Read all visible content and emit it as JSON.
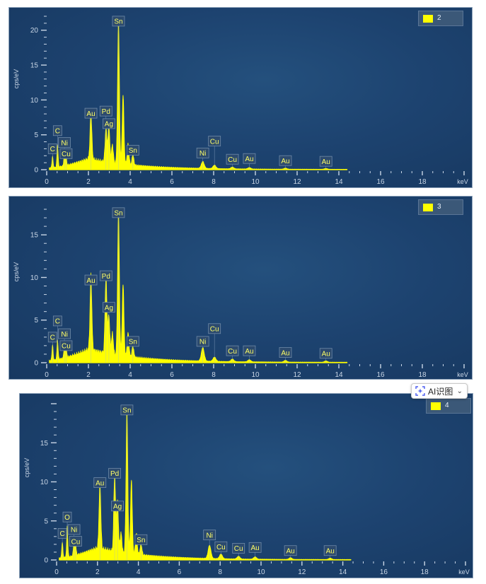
{
  "colors": {
    "spectrum": "#ffff00",
    "axis": "#c9d6e6",
    "label_bg": "#2c4a6e",
    "label_text": "#ffff66",
    "panel_bg": "#1b3d64"
  },
  "ai_button": {
    "label": "AI识图",
    "icon": "ai-scan-icon",
    "chevron": "chevron-down-icon"
  },
  "chart_data": [
    {
      "type": "area",
      "legend": "2",
      "ylabel": "cps/eV",
      "xlabel": "keV",
      "xlim": [
        0,
        20
      ],
      "ylim": [
        0,
        22
      ],
      "xticks": [
        0,
        2,
        4,
        6,
        8,
        10,
        12,
        14,
        16,
        18
      ],
      "yticks": [
        0,
        5,
        10,
        15,
        20
      ],
      "peaks": [
        {
          "x": 0.28,
          "y": 1.6
        },
        {
          "x": 0.52,
          "y": 3.2
        },
        {
          "x": 0.85,
          "y": 1.9
        },
        {
          "x": 0.93,
          "y": 1.2
        },
        {
          "x": 2.12,
          "y": 6.8
        },
        {
          "x": 2.84,
          "y": 4.8
        },
        {
          "x": 2.98,
          "y": 5.2
        },
        {
          "x": 3.15,
          "y": 2.6
        },
        {
          "x": 3.44,
          "y": 20.5
        },
        {
          "x": 3.66,
          "y": 10.0
        },
        {
          "x": 3.9,
          "y": 3.0
        },
        {
          "x": 4.13,
          "y": 1.5
        },
        {
          "x": 7.48,
          "y": 1.0
        },
        {
          "x": 8.04,
          "y": 0.5
        },
        {
          "x": 8.9,
          "y": 0.25
        },
        {
          "x": 9.71,
          "y": 0.2
        },
        {
          "x": 11.44,
          "y": 0.15
        },
        {
          "x": 13.38,
          "y": 0.12
        }
      ],
      "annotations": [
        {
          "text": "Sn",
          "x": 3.44,
          "y": 21.3
        },
        {
          "text": "Au",
          "x": 2.12,
          "y": 8.1
        },
        {
          "text": "Pd",
          "x": 2.84,
          "y": 8.4
        },
        {
          "text": "Ag",
          "x": 2.98,
          "y": 6.6
        },
        {
          "text": "C",
          "x": 0.52,
          "y": 5.6
        },
        {
          "text": "Ni",
          "x": 0.85,
          "y": 3.9
        },
        {
          "text": "C",
          "x": 0.28,
          "y": 3.0
        },
        {
          "text": "Cu",
          "x": 0.93,
          "y": 2.3
        },
        {
          "text": "Sn",
          "x": 4.13,
          "y": 2.8
        },
        {
          "text": "Cu",
          "x": 8.04,
          "y": 4.1
        },
        {
          "text": "Ni",
          "x": 7.48,
          "y": 2.4
        },
        {
          "text": "Cu",
          "x": 8.9,
          "y": 1.5
        },
        {
          "text": "Au",
          "x": 9.71,
          "y": 1.6
        },
        {
          "text": "Au",
          "x": 11.44,
          "y": 1.3
        },
        {
          "text": "Au",
          "x": 13.38,
          "y": 1.2
        }
      ]
    },
    {
      "type": "area",
      "legend": "3",
      "ylabel": "cps/eV",
      "xlabel": "keV",
      "xlim": [
        0,
        20
      ],
      "ylim": [
        0,
        18
      ],
      "xticks": [
        0,
        2,
        4,
        6,
        8,
        10,
        12,
        14,
        16,
        18
      ],
      "yticks": [
        0,
        5,
        10,
        15
      ],
      "peaks": [
        {
          "x": 0.28,
          "y": 1.8
        },
        {
          "x": 0.52,
          "y": 2.3
        },
        {
          "x": 0.85,
          "y": 1.6
        },
        {
          "x": 0.93,
          "y": 1.3
        },
        {
          "x": 2.12,
          "y": 8.8
        },
        {
          "x": 2.84,
          "y": 9.0
        },
        {
          "x": 2.98,
          "y": 4.5
        },
        {
          "x": 3.15,
          "y": 2.5
        },
        {
          "x": 3.44,
          "y": 17.0
        },
        {
          "x": 3.66,
          "y": 8.5
        },
        {
          "x": 3.9,
          "y": 2.8
        },
        {
          "x": 4.13,
          "y": 1.3
        },
        {
          "x": 7.48,
          "y": 1.6
        },
        {
          "x": 8.04,
          "y": 0.5
        },
        {
          "x": 8.9,
          "y": 0.3
        },
        {
          "x": 9.71,
          "y": 0.25
        },
        {
          "x": 11.44,
          "y": 0.2
        },
        {
          "x": 13.38,
          "y": 0.15
        }
      ],
      "annotations": [
        {
          "text": "Sn",
          "x": 3.44,
          "y": 17.6
        },
        {
          "text": "Au",
          "x": 2.12,
          "y": 9.7
        },
        {
          "text": "Pd",
          "x": 2.84,
          "y": 10.2
        },
        {
          "text": "Ag",
          "x": 2.98,
          "y": 6.5
        },
        {
          "text": "C",
          "x": 0.52,
          "y": 4.9
        },
        {
          "text": "Ni",
          "x": 0.85,
          "y": 3.4
        },
        {
          "text": "C",
          "x": 0.28,
          "y": 3.0
        },
        {
          "text": "Cu",
          "x": 0.93,
          "y": 2.0
        },
        {
          "text": "Sn",
          "x": 4.13,
          "y": 2.5
        },
        {
          "text": "Cu",
          "x": 8.04,
          "y": 4.0
        },
        {
          "text": "Ni",
          "x": 7.48,
          "y": 2.5
        },
        {
          "text": "Cu",
          "x": 8.9,
          "y": 1.4
        },
        {
          "text": "Au",
          "x": 9.71,
          "y": 1.4
        },
        {
          "text": "Au",
          "x": 11.44,
          "y": 1.2
        },
        {
          "text": "Au",
          "x": 13.38,
          "y": 1.1
        }
      ]
    },
    {
      "type": "area",
      "legend": "4",
      "ylabel": "cps/eV",
      "xlabel": "keV",
      "xlim": [
        0,
        20
      ],
      "ylim": [
        0,
        20
      ],
      "xticks": [
        0,
        2,
        4,
        6,
        8,
        10,
        12,
        14,
        16,
        18
      ],
      "yticks": [
        0,
        5,
        10,
        15
      ],
      "peaks": [
        {
          "x": 0.28,
          "y": 2.0
        },
        {
          "x": 0.52,
          "y": 4.0
        },
        {
          "x": 0.85,
          "y": 2.0
        },
        {
          "x": 0.93,
          "y": 1.4
        },
        {
          "x": 2.12,
          "y": 8.5
        },
        {
          "x": 2.84,
          "y": 9.8
        },
        {
          "x": 2.98,
          "y": 6.5
        },
        {
          "x": 3.15,
          "y": 2.5
        },
        {
          "x": 3.44,
          "y": 18.5
        },
        {
          "x": 3.66,
          "y": 9.5
        },
        {
          "x": 3.9,
          "y": 2.7
        },
        {
          "x": 4.13,
          "y": 1.4
        },
        {
          "x": 7.48,
          "y": 1.7
        },
        {
          "x": 8.04,
          "y": 0.6
        },
        {
          "x": 8.9,
          "y": 0.35
        },
        {
          "x": 9.71,
          "y": 0.3
        },
        {
          "x": 11.44,
          "y": 0.22
        },
        {
          "x": 13.38,
          "y": 0.18
        }
      ],
      "annotations": [
        {
          "text": "Sn",
          "x": 3.44,
          "y": 19.2
        },
        {
          "text": "Au",
          "x": 2.12,
          "y": 9.9
        },
        {
          "text": "Pd",
          "x": 2.84,
          "y": 11.1
        },
        {
          "text": "Ag",
          "x": 2.98,
          "y": 6.9
        },
        {
          "text": "O",
          "x": 0.52,
          "y": 5.5
        },
        {
          "text": "Ni",
          "x": 0.85,
          "y": 3.9
        },
        {
          "text": "C",
          "x": 0.28,
          "y": 3.4
        },
        {
          "text": "Cu",
          "x": 0.93,
          "y": 2.4
        },
        {
          "text": "Sn",
          "x": 4.13,
          "y": 2.6
        },
        {
          "text": "Ni",
          "x": 7.48,
          "y": 3.2
        },
        {
          "text": "Cu",
          "x": 8.04,
          "y": 1.7
        },
        {
          "text": "Cu",
          "x": 8.9,
          "y": 1.5
        },
        {
          "text": "Au",
          "x": 9.71,
          "y": 1.6
        },
        {
          "text": "Au",
          "x": 11.44,
          "y": 1.2
        },
        {
          "text": "Au",
          "x": 13.38,
          "y": 1.2
        }
      ]
    }
  ]
}
